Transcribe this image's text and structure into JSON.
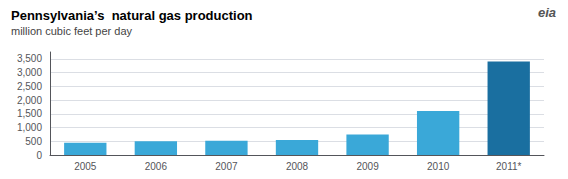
{
  "chart_data": {
    "type": "bar",
    "title": "Pennsylvania’s  natural gas production",
    "subtitle": "million cubic feet per day",
    "annotations": [
      "eia"
    ],
    "categories": [
      "2005",
      "2006",
      "2007",
      "2008",
      "2009",
      "2010",
      "2011*"
    ],
    "values": [
      450,
      500,
      520,
      550,
      750,
      1600,
      3400
    ],
    "colors": [
      "#3aa8d8",
      "#3aa8d8",
      "#3aa8d8",
      "#3aa8d8",
      "#3aa8d8",
      "#3aa8d8",
      "#1a6fa0"
    ],
    "ylim": [
      0,
      3750
    ],
    "yticks": [
      0,
      500,
      {
        "value": 1000,
        "label": "1,000"
      },
      {
        "value": 1500,
        "label": "1,500"
      },
      {
        "value": 2000,
        "label": "2,000"
      },
      {
        "value": 2500,
        "label": "2,500"
      },
      {
        "value": 3000,
        "label": "3,000"
      },
      {
        "value": 3500,
        "label": "3,500"
      }
    ],
    "grid": true
  }
}
